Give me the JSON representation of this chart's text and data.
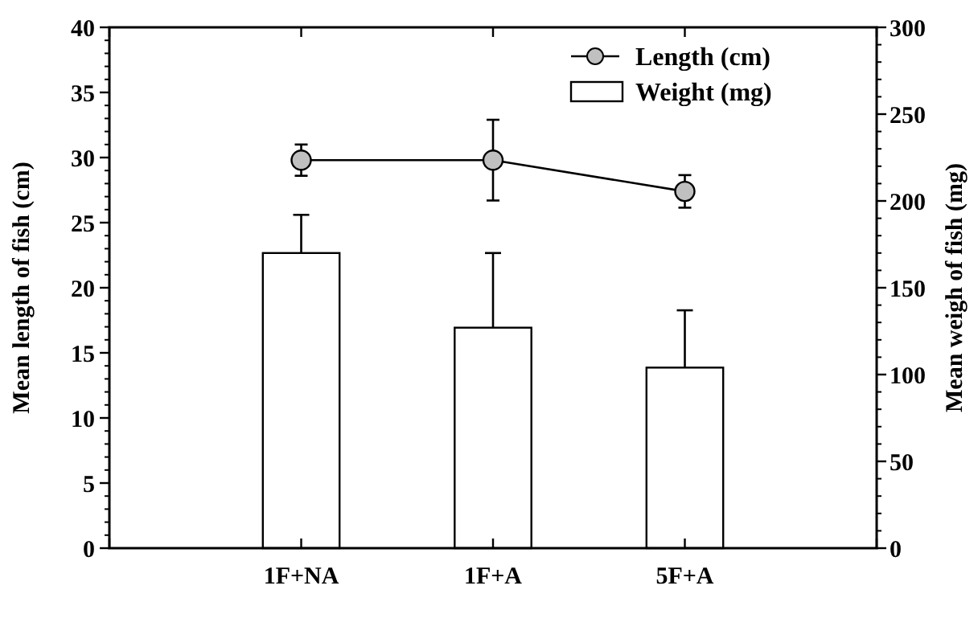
{
  "chart_data": {
    "type": "bar",
    "categories": [
      null,
      "1F+NA",
      "1F+A",
      "5F+A",
      null
    ],
    "ylabel": "Mean length of fish (cm)",
    "y2label": "Mean weigh of fish (mg)",
    "ylim": [
      0,
      40
    ],
    "yticks": [
      0,
      5,
      10,
      15,
      20,
      25,
      30,
      35,
      40
    ],
    "y2lim": [
      0,
      300
    ],
    "y2ticks": [
      0,
      50,
      100,
      150,
      200,
      250,
      300
    ],
    "series": [
      {
        "name": "Length (cm)",
        "type": "line",
        "color": "#c0c0c0",
        "marker": "circle",
        "values": [
          null,
          29.8,
          29.8,
          27.4,
          null
        ],
        "errors": [
          null,
          1.2,
          3.1,
          1.25,
          null
        ]
      },
      {
        "name": "Weight (mg)",
        "axis": "y2",
        "color": "#ffffff",
        "values": [
          null,
          170,
          127,
          104,
          null
        ],
        "errors": [
          null,
          [
            170,
            192
          ],
          [
            127,
            170
          ],
          [
            104,
            137
          ],
          null
        ]
      }
    ],
    "legend": "top right",
    "grid": false
  }
}
